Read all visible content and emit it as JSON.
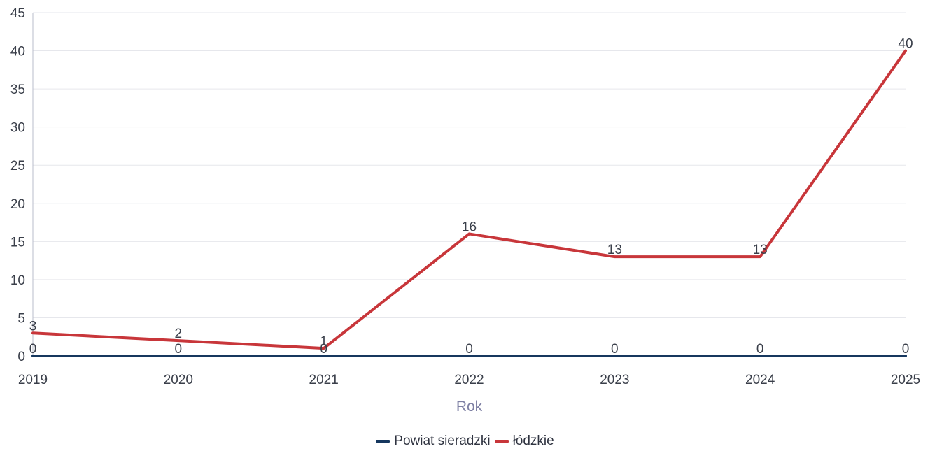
{
  "chart_data": {
    "type": "line",
    "title": "",
    "xlabel": "Rok",
    "ylabel": "",
    "x": [
      "2019",
      "2020",
      "2021",
      "2022",
      "2023",
      "2024",
      "2025"
    ],
    "ylim": [
      0,
      45
    ],
    "yticks": [
      0,
      5,
      10,
      15,
      20,
      25,
      30,
      35,
      40,
      45
    ],
    "grid": true,
    "legend_position": "bottom-center",
    "series": [
      {
        "name": "Powiat sieradzki",
        "color": "#16375e",
        "values": [
          0,
          0,
          0,
          0,
          0,
          0,
          0
        ]
      },
      {
        "name": "łódzkie",
        "color": "#c8363a",
        "values": [
          3,
          2,
          1,
          16,
          13,
          13,
          40
        ]
      }
    ]
  }
}
